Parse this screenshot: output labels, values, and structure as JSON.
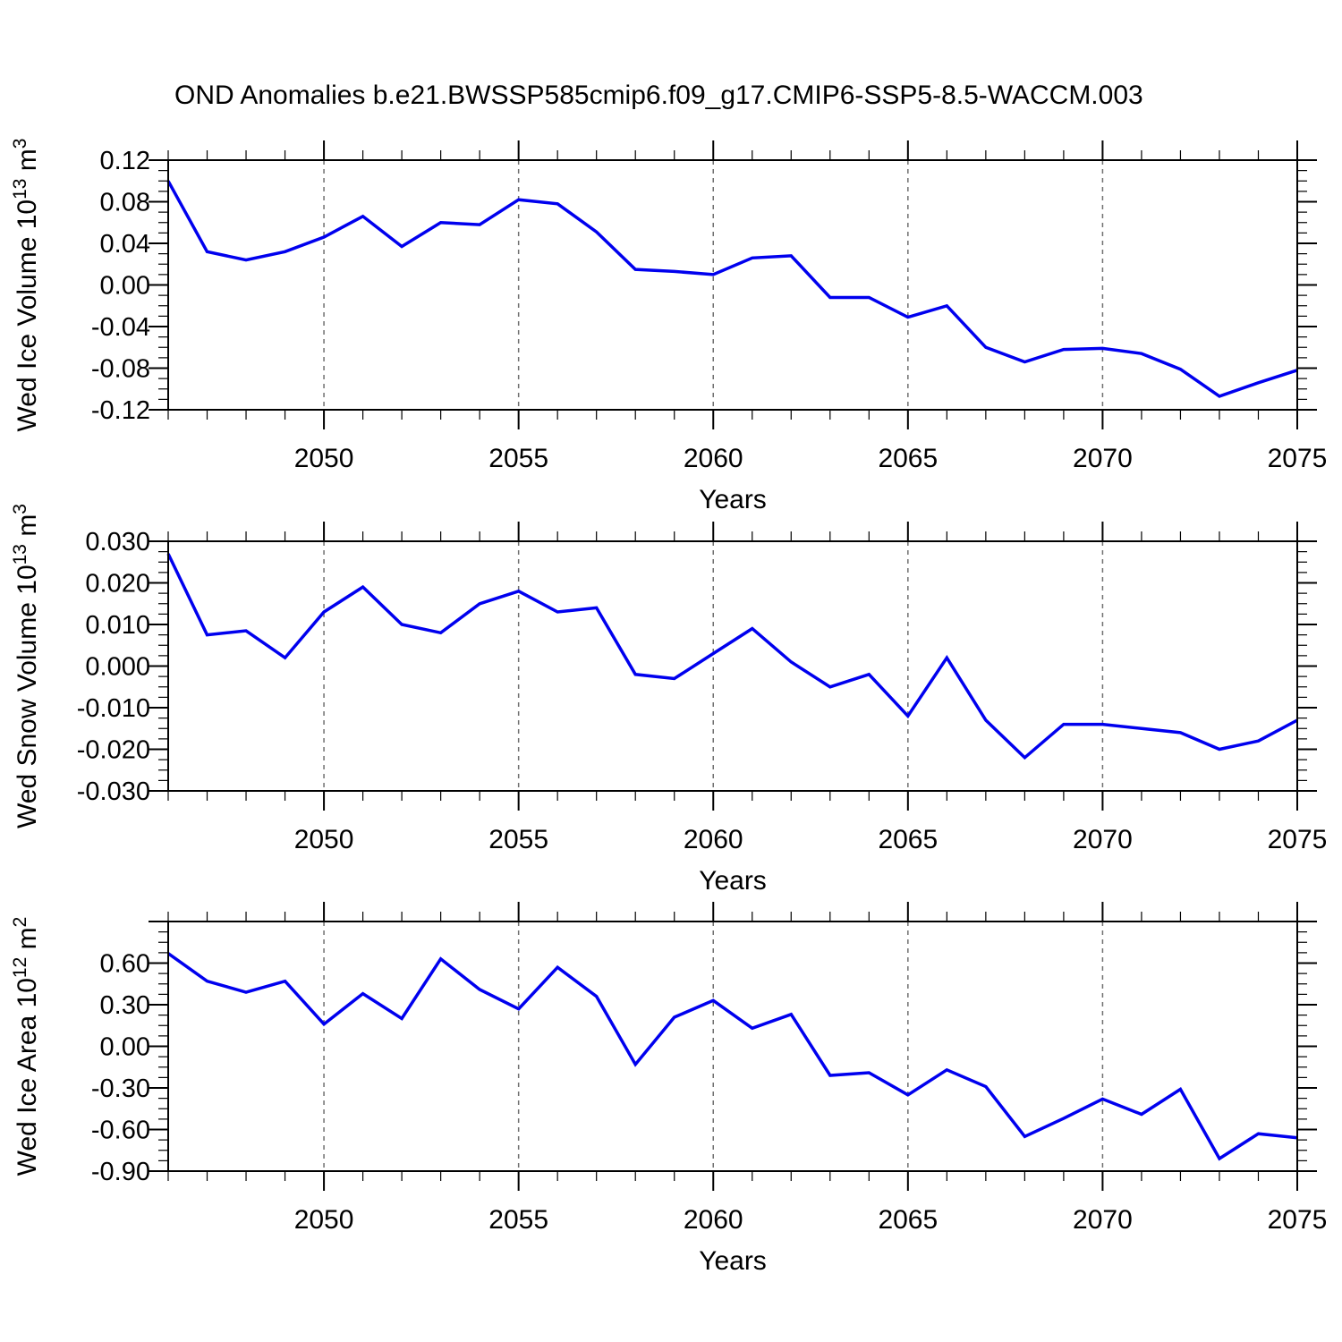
{
  "title": "OND Anomalies b.e21.BWSSP585cmip6.f09_g17.CMIP6-SSP5-8.5-WACCM.003",
  "style": {
    "line_color": "#0000ee",
    "grid_color": "#707070",
    "frame_color": "#000000",
    "text_color": "#000000",
    "background": "#ffffff"
  },
  "x_axis": {
    "label": "Years",
    "years": [
      2046,
      2047,
      2048,
      2049,
      2050,
      2051,
      2052,
      2053,
      2054,
      2055,
      2056,
      2057,
      2058,
      2059,
      2060,
      2061,
      2062,
      2063,
      2064,
      2065,
      2066,
      2067,
      2068,
      2069,
      2070,
      2071,
      2072,
      2073,
      2074,
      2075
    ],
    "major_tick_years": [
      2050,
      2055,
      2060,
      2065,
      2070,
      2075
    ],
    "major_tick_labels": [
      "2050",
      "2055",
      "2060",
      "2065",
      "2070",
      "2075"
    ],
    "gridline_years": [
      2050,
      2055,
      2060,
      2065,
      2070
    ],
    "minor_tick_step_years": 1,
    "xlim": [
      2046,
      2075
    ]
  },
  "chart_data": [
    {
      "type": "line",
      "name": "wed-ice-volume",
      "ylabel": "Wed Ice Volume 10¹³ m³",
      "ylabel_segments": [
        {
          "text": "Wed Ice Volume 10"
        },
        {
          "text": "13",
          "sup": true
        },
        {
          "text": " m"
        },
        {
          "text": "3",
          "sup": true
        }
      ],
      "ylim": [
        -0.12,
        0.12
      ],
      "ytick_major_step": 0.04,
      "ytick_minor_step": 0.01,
      "ytick_labels": [
        "0.12",
        "0.08",
        "0.04",
        "0.00",
        "-0.04",
        "-0.08",
        "-0.12"
      ],
      "grid": "vertical-dashed",
      "legend": "none",
      "values": [
        0.1,
        0.032,
        0.024,
        0.032,
        0.046,
        0.066,
        0.037,
        0.06,
        0.058,
        0.082,
        0.078,
        0.051,
        0.015,
        0.013,
        0.01,
        0.026,
        0.028,
        -0.012,
        -0.012,
        -0.031,
        -0.02,
        -0.06,
        -0.074,
        -0.062,
        -0.061,
        -0.066,
        -0.081,
        -0.107,
        -0.094,
        -0.082
      ]
    },
    {
      "type": "line",
      "name": "wed-snow-volume",
      "ylabel": "Wed Snow Volume 10¹³ m³",
      "ylabel_segments": [
        {
          "text": "Wed Snow Volume 10"
        },
        {
          "text": "13",
          "sup": true
        },
        {
          "text": " m"
        },
        {
          "text": "3",
          "sup": true
        }
      ],
      "ylim": [
        -0.03,
        0.03
      ],
      "ytick_major_step": 0.01,
      "ytick_minor_step": 0.0025,
      "ytick_labels": [
        "0.030",
        "0.020",
        "0.010",
        "0.000",
        "-0.010",
        "-0.020",
        "-0.030"
      ],
      "grid": "vertical-dashed",
      "legend": "none",
      "values": [
        0.027,
        0.0075,
        0.0085,
        0.002,
        0.013,
        0.019,
        0.01,
        0.008,
        0.015,
        0.018,
        0.013,
        0.014,
        -0.002,
        -0.003,
        0.003,
        0.009,
        0.001,
        -0.005,
        -0.002,
        -0.012,
        0.002,
        -0.013,
        -0.022,
        -0.014,
        -0.014,
        -0.015,
        -0.016,
        -0.02,
        -0.018,
        -0.013
      ]
    },
    {
      "type": "line",
      "name": "wed-ice-area",
      "ylabel": "Wed Ice Area 10¹² m²",
      "ylabel_segments": [
        {
          "text": "Wed Ice Area 10"
        },
        {
          "text": "12",
          "sup": true
        },
        {
          "text": " m"
        },
        {
          "text": "2",
          "sup": true
        }
      ],
      "ylim": [
        -0.9,
        0.9
      ],
      "ytick_major_step": 0.3,
      "ytick_minor_step": 0.075,
      "ytick_labels": [
        "",
        "0.60",
        "0.30",
        "0.00",
        "-0.30",
        "-0.60",
        "-0.90"
      ],
      "grid": "vertical-dashed",
      "legend": "none",
      "values": [
        0.67,
        0.47,
        0.39,
        0.47,
        0.16,
        0.38,
        0.2,
        0.63,
        0.41,
        0.27,
        0.57,
        0.36,
        -0.13,
        0.21,
        0.33,
        0.13,
        0.23,
        -0.21,
        -0.19,
        -0.35,
        -0.17,
        -0.29,
        -0.65,
        -0.52,
        -0.38,
        -0.49,
        -0.31,
        -0.81,
        -0.63,
        -0.66
      ]
    }
  ]
}
